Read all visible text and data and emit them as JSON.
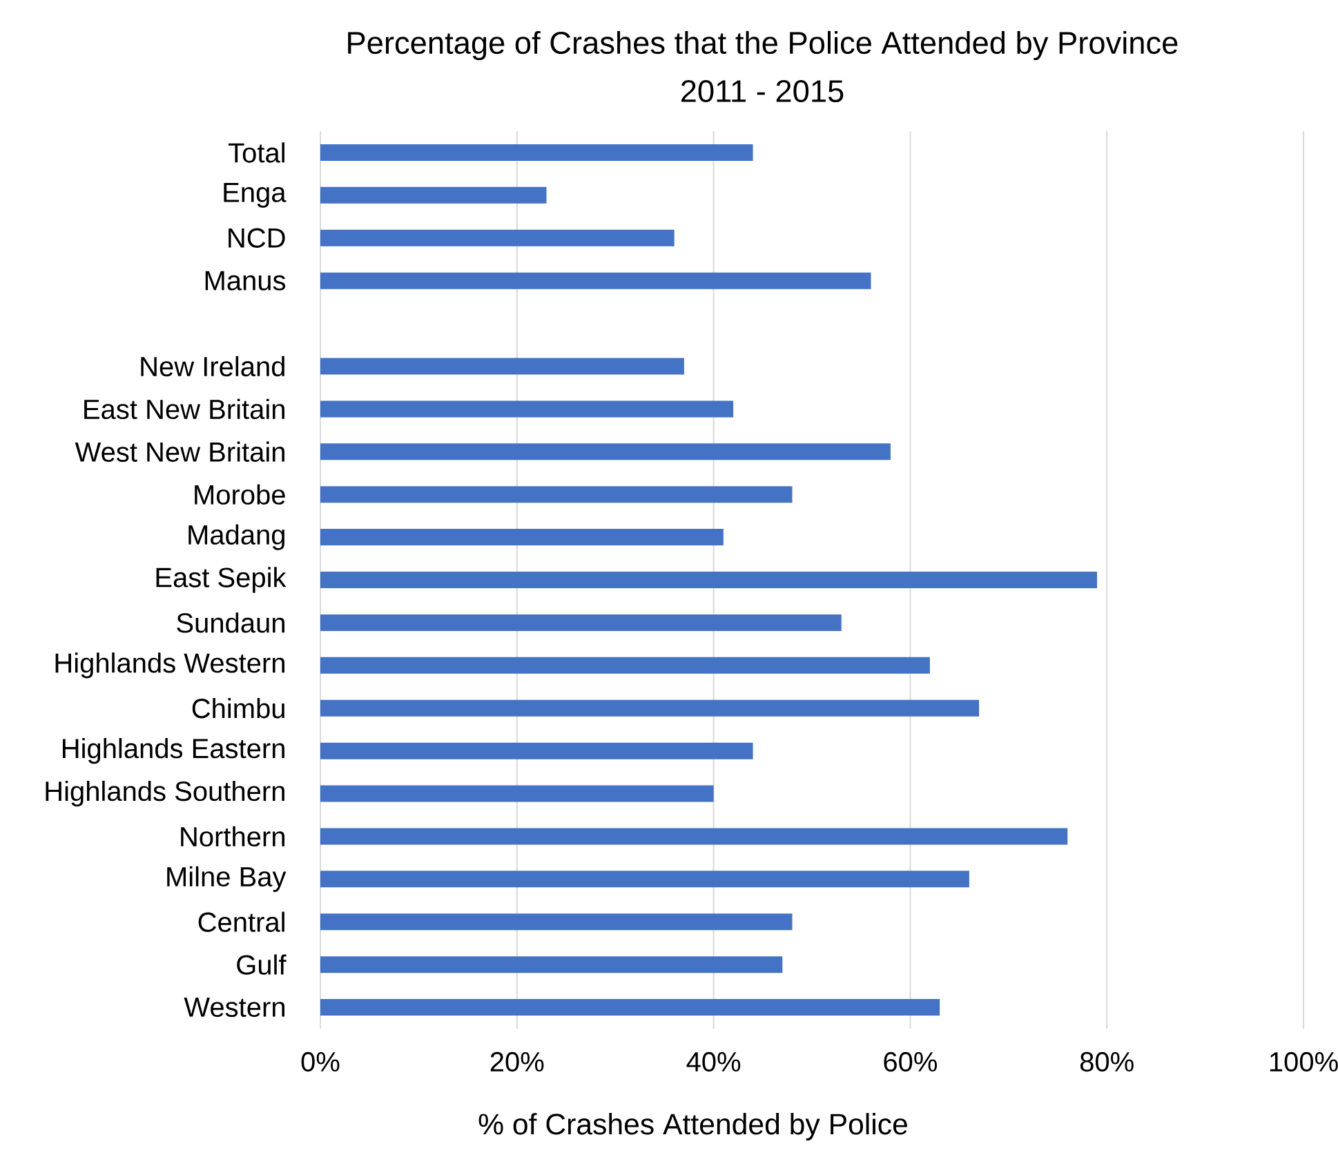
{
  "chart_data": {
    "type": "bar",
    "orientation": "horizontal",
    "title": "Percentage of Crashes that the Police Attended by Province",
    "subtitle": "2011 - 2015",
    "xlabel": "% of Crashes Attended by Police",
    "categories": [
      "Total",
      "Enga",
      "NCD",
      "Manus",
      null,
      "New Ireland",
      "East New Britain",
      "West New Britain",
      "Morobe",
      "Madang",
      "East Sepik",
      "Sundaun",
      "Highlands Western",
      "Chimbu",
      "Highlands Eastern",
      "Highlands Southern",
      "Northern",
      "Milne Bay",
      "Central",
      "Gulf",
      "Western"
    ],
    "values": [
      44,
      23,
      36,
      56,
      null,
      37,
      42,
      58,
      48,
      41,
      79,
      53,
      62,
      67,
      44,
      40,
      76,
      66,
      48,
      47,
      63
    ],
    "color": "#4472c4",
    "xlim": [
      0,
      100
    ],
    "xticks": [
      {
        "value": 0,
        "label": "0%"
      },
      {
        "value": 20,
        "label": "20%"
      },
      {
        "value": 40,
        "label": "40%"
      },
      {
        "value": 60,
        "label": "60%"
      },
      {
        "value": 80,
        "label": "80%"
      },
      {
        "value": 100,
        "label": "100%"
      }
    ],
    "grid": "x"
  }
}
